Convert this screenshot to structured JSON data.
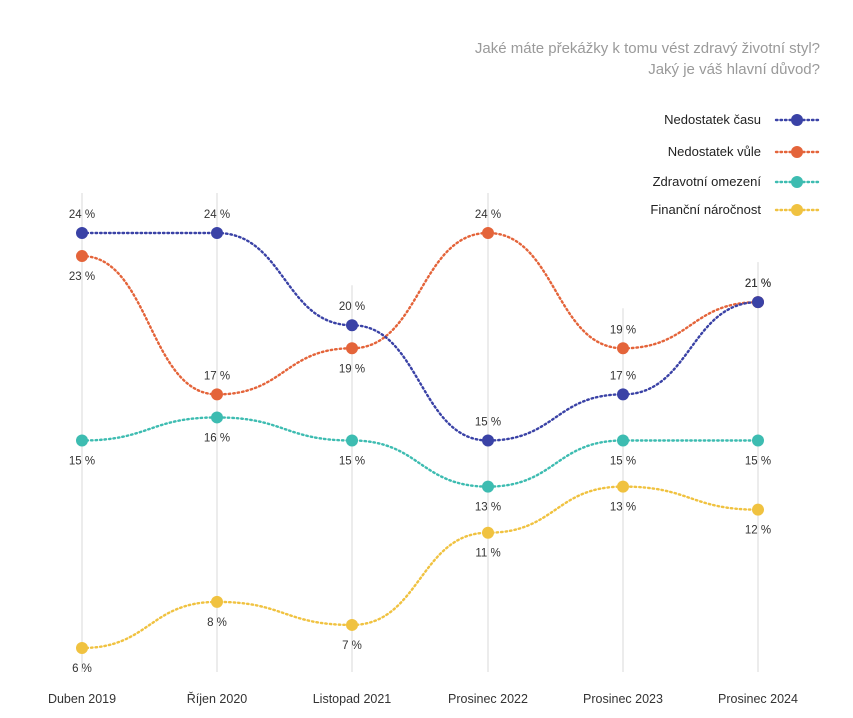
{
  "chart_data": {
    "type": "line",
    "title": [
      "Jaké máte překážky k tomu vést zdravý životní styl?",
      "Jaký je váš hlavní důvod?"
    ],
    "categories": [
      "Duben 2019",
      "Říjen 2020",
      "Listopad 2021",
      "Prosinec 2022",
      "Prosinec 2023",
      "Prosinec 2024"
    ],
    "value_suffix": " %",
    "ylim": [
      6,
      24
    ],
    "grid": "vertical",
    "legend_position": "top-right",
    "series": [
      {
        "name": "Nedostatek času",
        "color": "#3a42a6",
        "values": [
          24,
          24,
          20,
          15,
          17,
          21
        ],
        "label_side": [
          "above",
          "above",
          "above",
          "above",
          "above",
          "above"
        ]
      },
      {
        "name": "Nedostatek vůle",
        "color": "#e4643a",
        "values": [
          23,
          17,
          19,
          24,
          19,
          21
        ],
        "label_side": [
          "below",
          "above",
          "below",
          "above",
          "above",
          "above"
        ]
      },
      {
        "name": "Zdravotní omezení",
        "color": "#3dbcb1",
        "values": [
          15,
          16,
          15,
          13,
          15,
          15
        ],
        "label_side": [
          "below",
          "below",
          "below",
          "below",
          "below",
          "below"
        ]
      },
      {
        "name": "Finanční náročnost",
        "color": "#f0c240",
        "values": [
          6,
          8,
          7,
          11,
          13,
          12
        ],
        "label_side": [
          "below",
          "below",
          "below",
          "below",
          "below",
          "below"
        ]
      }
    ]
  }
}
